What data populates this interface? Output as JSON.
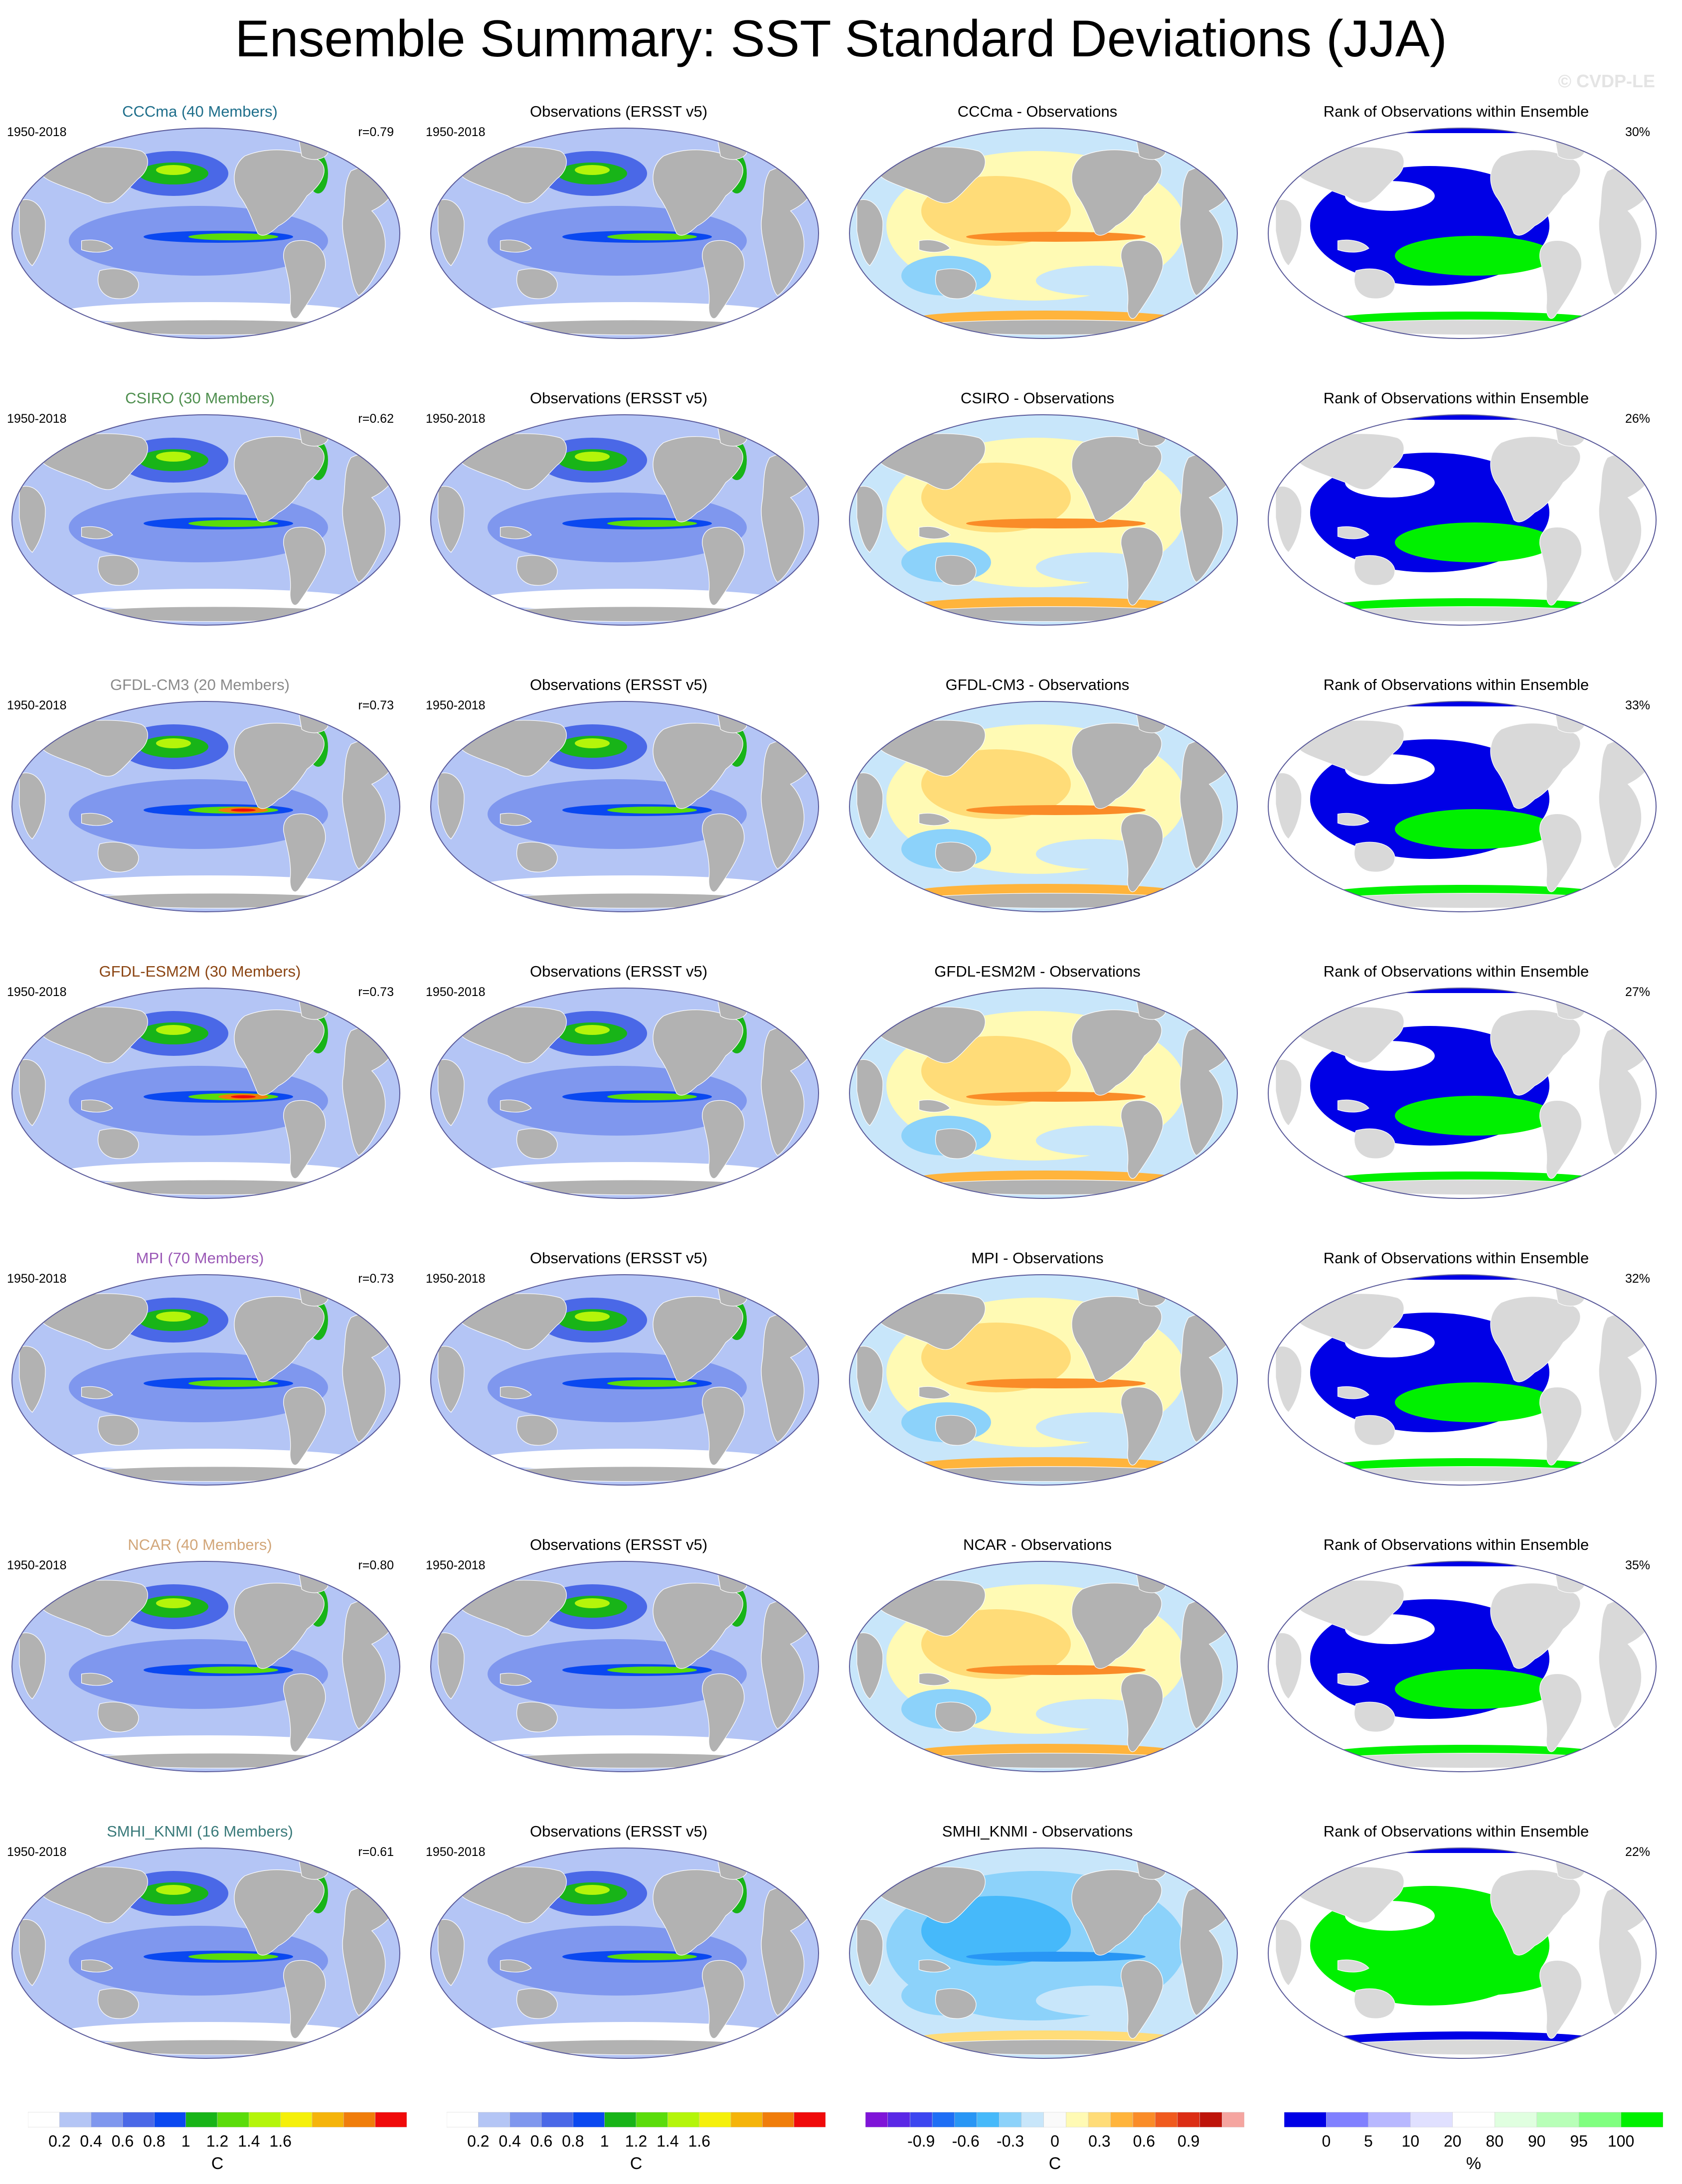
{
  "title": "Ensemble Summary: SST Standard Deviations (JJA)",
  "watermark": "© CVDP-LE",
  "colors": {
    "land": "#b2b2b2",
    "sst_scale": [
      "#ffffff",
      "#b4c5f5",
      "#7f97ee",
      "#4a68e7",
      "#0a48f0",
      "#18b418",
      "#5adc0a",
      "#b4f50a",
      "#f5f00a",
      "#f5b40a",
      "#f07d0a",
      "#f00a0a"
    ],
    "diff_scale": [
      "#7f14d8",
      "#5a28e6",
      "#3c46f0",
      "#1e6ef5",
      "#2896f5",
      "#46b9fa",
      "#8cd2fa",
      "#c8e6fa",
      "#fafafa",
      "#fffab4",
      "#ffdc78",
      "#ffb43c",
      "#fa8c28",
      "#f05a1e",
      "#dc2d14",
      "#be140a",
      "#f5a5a0"
    ],
    "rank_scale": [
      "#0000e6",
      "#8080ff",
      "#b8b8ff",
      "#e0e0ff",
      "#ffffff",
      "#e0ffe0",
      "#b8ffb8",
      "#80ff80",
      "#00f000"
    ]
  },
  "rows": [
    {
      "model_title": "CCCma (40 Members)",
      "model_color": "#1f6f8b",
      "period": "1950-2018",
      "r": "r=0.79",
      "obs_title": "Observations (ERSST v5)",
      "obs_period": "1950-2018",
      "diff_title": "CCCma - Observations",
      "rank_title": "Rank of Observations within Ensemble",
      "rank_pct": "30%"
    },
    {
      "model_title": "CSIRO (30 Members)",
      "model_color": "#4f8f4f",
      "period": "1950-2018",
      "r": "r=0.62",
      "obs_title": "Observations (ERSST v5)",
      "obs_period": "1950-2018",
      "diff_title": "CSIRO - Observations",
      "rank_title": "Rank of Observations within Ensemble",
      "rank_pct": "26%"
    },
    {
      "model_title": "GFDL-CM3 (20 Members)",
      "model_color": "#8a8a8a",
      "period": "1950-2018",
      "r": "r=0.73",
      "obs_title": "Observations (ERSST v5)",
      "obs_period": "1950-2018",
      "diff_title": "GFDL-CM3 - Observations",
      "rank_title": "Rank of Observations within Ensemble",
      "rank_pct": "33%"
    },
    {
      "model_title": "GFDL-ESM2M (30 Members)",
      "model_color": "#8b4513",
      "period": "1950-2018",
      "r": "r=0.73",
      "obs_title": "Observations (ERSST v5)",
      "obs_period": "1950-2018",
      "diff_title": "GFDL-ESM2M - Observations",
      "rank_title": "Rank of Observations within Ensemble",
      "rank_pct": "27%"
    },
    {
      "model_title": "MPI (70 Members)",
      "model_color": "#9b59b6",
      "period": "1950-2018",
      "r": "r=0.73",
      "obs_title": "Observations (ERSST v5)",
      "obs_period": "1950-2018",
      "diff_title": "MPI - Observations",
      "rank_title": "Rank of Observations within Ensemble",
      "rank_pct": "32%"
    },
    {
      "model_title": "NCAR (40 Members)",
      "model_color": "#d2a679",
      "period": "1950-2018",
      "r": "r=0.80",
      "obs_title": "Observations (ERSST v5)",
      "obs_period": "1950-2018",
      "diff_title": "NCAR - Observations",
      "rank_title": "Rank of Observations within Ensemble",
      "rank_pct": "35%"
    },
    {
      "model_title": "SMHI_KNMI (16 Members)",
      "model_color": "#3a7a7a",
      "period": "1950-2018",
      "r": "r=0.61",
      "obs_title": "Observations (ERSST v5)",
      "obs_period": "1950-2018",
      "diff_title": "SMHI_KNMI - Observations",
      "rank_title": "Rank of Observations within Ensemble",
      "rank_pct": "22%"
    }
  ],
  "colorbars": [
    {
      "labels": [
        "0.2",
        "0.4",
        "0.6",
        "0.8",
        "1",
        "1.2",
        "1.4",
        "1.6"
      ],
      "unit": "C",
      "scale": "sst"
    },
    {
      "labels": [
        "0.2",
        "0.4",
        "0.6",
        "0.8",
        "1",
        "1.2",
        "1.4",
        "1.6"
      ],
      "unit": "C",
      "scale": "sst"
    },
    {
      "labels": [
        "-0.9",
        "-0.6",
        "-0.3",
        "0",
        "0.3",
        "0.6",
        "0.9"
      ],
      "unit": "C",
      "scale": "diff"
    },
    {
      "labels": [
        "0",
        "5",
        "10",
        "20",
        "80",
        "90",
        "95",
        "100"
      ],
      "unit": "%",
      "scale": "rank"
    }
  ]
}
